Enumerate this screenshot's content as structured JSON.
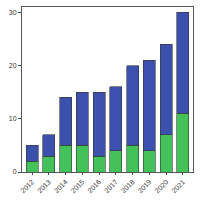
{
  "chart_data": {
    "type": "bar",
    "stacked": true,
    "grid": false,
    "categories": [
      "2012",
      "2013",
      "2014",
      "2015",
      "2016",
      "2017",
      "2018",
      "2019",
      "2020",
      "2021"
    ],
    "series": [
      {
        "color": "#44c25a",
        "values": [
          2,
          3,
          5,
          5,
          3,
          4,
          5,
          4,
          7,
          11
        ]
      },
      {
        "color": "#3c50ad",
        "values": [
          3,
          4,
          9,
          10,
          12,
          12,
          15,
          17,
          17,
          19
        ]
      }
    ],
    "ylim": [
      0,
      31
    ],
    "yticks": [
      0,
      10,
      20,
      30
    ]
  }
}
